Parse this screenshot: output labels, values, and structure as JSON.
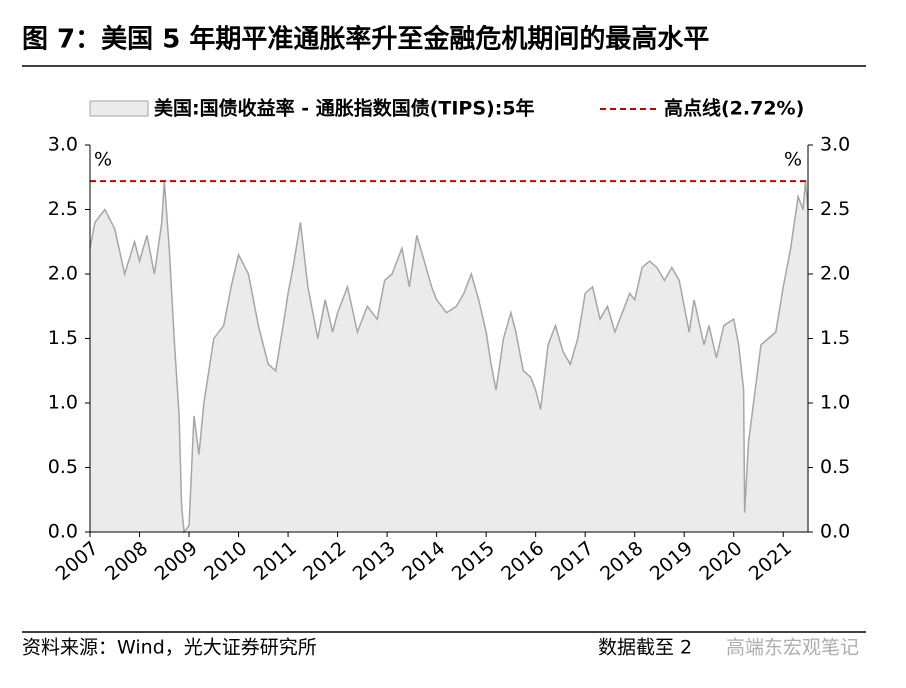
{
  "chart_data": {
    "type": "area",
    "title": "图 7：美国 5 年期平准通胀率升至金融危机期间的最高水平",
    "y_unit_left": "%",
    "y_unit_right": "%",
    "series": [
      {
        "name": "美国:国债收益率 - 通胀指数国债(TIPS):5年",
        "color": "#a6a6a6",
        "fill": "#ebebeb",
        "x": [
          2007.0,
          2007.1,
          2007.3,
          2007.5,
          2007.7,
          2007.9,
          2008.0,
          2008.15,
          2008.3,
          2008.45,
          2008.5,
          2008.6,
          2008.7,
          2008.8,
          2008.85,
          2008.9,
          2009.0,
          2009.1,
          2009.2,
          2009.3,
          2009.5,
          2009.7,
          2009.85,
          2010.0,
          2010.2,
          2010.4,
          2010.6,
          2010.75,
          2010.9,
          2011.0,
          2011.1,
          2011.25,
          2011.4,
          2011.6,
          2011.75,
          2011.9,
          2012.0,
          2012.2,
          2012.4,
          2012.6,
          2012.8,
          2012.95,
          2013.1,
          2013.3,
          2013.45,
          2013.6,
          2013.75,
          2013.9,
          2014.0,
          2014.2,
          2014.4,
          2014.55,
          2014.7,
          2014.85,
          2015.0,
          2015.1,
          2015.2,
          2015.35,
          2015.5,
          2015.6,
          2015.75,
          2015.9,
          2016.0,
          2016.1,
          2016.25,
          2016.4,
          2016.55,
          2016.7,
          2016.85,
          2017.0,
          2017.15,
          2017.3,
          2017.45,
          2017.6,
          2017.75,
          2017.9,
          2018.0,
          2018.15,
          2018.3,
          2018.45,
          2018.6,
          2018.75,
          2018.9,
          2019.0,
          2019.1,
          2019.2,
          2019.4,
          2019.5,
          2019.65,
          2019.8,
          2020.0,
          2020.1,
          2020.2,
          2020.22,
          2020.3,
          2020.4,
          2020.55,
          2020.7,
          2020.85,
          2021.0,
          2021.15,
          2021.3,
          2021.4,
          2021.45,
          2021.5
        ],
        "values": [
          2.2,
          2.4,
          2.5,
          2.35,
          2.0,
          2.25,
          2.1,
          2.3,
          2.0,
          2.4,
          2.72,
          2.2,
          1.5,
          0.9,
          0.2,
          0.0,
          0.05,
          0.9,
          0.6,
          1.0,
          1.5,
          1.6,
          1.9,
          2.15,
          2.0,
          1.6,
          1.3,
          1.25,
          1.6,
          1.85,
          2.05,
          2.4,
          1.9,
          1.5,
          1.8,
          1.55,
          1.7,
          1.9,
          1.55,
          1.75,
          1.65,
          1.95,
          2.0,
          2.2,
          1.9,
          2.3,
          2.1,
          1.9,
          1.8,
          1.7,
          1.75,
          1.85,
          2.0,
          1.8,
          1.55,
          1.3,
          1.1,
          1.5,
          1.7,
          1.55,
          1.25,
          1.2,
          1.1,
          0.95,
          1.45,
          1.6,
          1.4,
          1.3,
          1.5,
          1.85,
          1.9,
          1.65,
          1.75,
          1.55,
          1.7,
          1.85,
          1.8,
          2.05,
          2.1,
          2.05,
          1.95,
          2.05,
          1.95,
          1.75,
          1.55,
          1.8,
          1.45,
          1.6,
          1.35,
          1.6,
          1.65,
          1.45,
          1.1,
          0.15,
          0.7,
          1.0,
          1.45,
          1.5,
          1.55,
          1.9,
          2.2,
          2.6,
          2.5,
          2.72,
          2.5
        ]
      }
    ],
    "hline": {
      "name": "高点线(2.72%)",
      "value": 2.72,
      "color": "#c00000"
    },
    "xlim": [
      2007,
      2021.5
    ],
    "xticks": [
      2007,
      2008,
      2009,
      2010,
      2011,
      2012,
      2013,
      2014,
      2015,
      2016,
      2017,
      2018,
      2019,
      2020,
      2021
    ],
    "ylim": [
      0,
      3
    ],
    "yticks": [
      {
        "value": 0,
        "label": "0.0"
      },
      0.5,
      {
        "value": 1,
        "label": "1.0"
      },
      1.5,
      {
        "value": 2,
        "label": "2.0"
      },
      2.5,
      {
        "value": 3,
        "label": "3.0"
      }
    ],
    "source": "资料来源：Wind，光大证券研究所",
    "note": "数据截至 2",
    "watermark": "高端东宏观笔记"
  }
}
